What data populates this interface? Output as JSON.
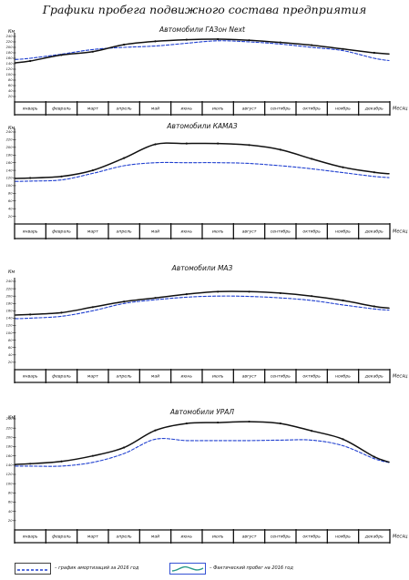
{
  "page": {
    "title": "Графики пробега подвижного состава предприятия"
  },
  "colors": {
    "actual": "#111111",
    "norm": "#1f3fd0",
    "legend_actual": "#2a9a8a"
  },
  "legend": {
    "norm_label": "– график амортизаций за 2016 год",
    "actual_label": "– Фактический пробег на 2016 год"
  },
  "chart_data": [
    {
      "type": "line",
      "title": "Автомобили ГАЗон Next",
      "ylabel": "Км",
      "xlabel": "Месяц",
      "categories": [
        "январь",
        "февраль",
        "март",
        "апрель",
        "май",
        "июнь",
        "июль",
        "август",
        "сентябрь",
        "октябрь",
        "ноябрь",
        "декабрь"
      ],
      "yticks": [
        "240",
        "220",
        "200",
        "180",
        "160",
        "140",
        "120",
        "100",
        "80",
        "60",
        "40",
        "20"
      ],
      "ylim": [
        0,
        240
      ],
      "grid": false,
      "series": [
        {
          "key": "norm",
          "values": [
            160,
            175,
            192,
            200,
            205,
            215,
            224,
            220,
            212,
            200,
            188,
            160
          ]
        },
        {
          "key": "actual",
          "values": [
            150,
            172,
            184,
            210,
            222,
            228,
            230,
            226,
            218,
            208,
            194,
            180
          ]
        }
      ]
    },
    {
      "type": "line",
      "title": "Автомобили КАМАЗ",
      "ylabel": "Км",
      "xlabel": "Месяц",
      "categories": [
        "январь",
        "февраль",
        "март",
        "апрель",
        "май",
        "июнь",
        "июль",
        "август",
        "сентябрь",
        "октябрь",
        "ноябрь",
        "декабрь"
      ],
      "yticks": [
        "240",
        "220",
        "200",
        "180",
        "160",
        "140",
        "120",
        "100",
        "80",
        "60",
        "40",
        "20"
      ],
      "ylim": [
        0,
        240
      ],
      "grid": false,
      "series": [
        {
          "key": "norm",
          "values": [
            112,
            115,
            132,
            152,
            160,
            160,
            160,
            158,
            152,
            144,
            134,
            124
          ]
        },
        {
          "key": "actual",
          "values": [
            120,
            124,
            140,
            172,
            208,
            210,
            210,
            206,
            194,
            170,
            148,
            135
          ]
        }
      ]
    },
    {
      "type": "line",
      "title": "Автомобили МАЗ",
      "ylabel": "Км",
      "xlabel": "Месяц",
      "categories": [
        "январь",
        "февраль",
        "март",
        "апрель",
        "май",
        "июнь",
        "июль",
        "август",
        "сентябрь",
        "октябрь",
        "ноябрь",
        "декабрь"
      ],
      "yticks": [
        "240",
        "220",
        "200",
        "180",
        "160",
        "140",
        "120",
        "100",
        "80",
        "60",
        "40",
        "20"
      ],
      "ylim": [
        0,
        240
      ],
      "grid": false,
      "series": [
        {
          "key": "norm",
          "values": [
            140,
            145,
            160,
            180,
            190,
            197,
            200,
            199,
            195,
            188,
            176,
            165
          ]
        },
        {
          "key": "actual",
          "values": [
            150,
            155,
            170,
            185,
            195,
            205,
            212,
            212,
            208,
            200,
            188,
            172
          ]
        }
      ]
    },
    {
      "type": "line",
      "title": "Автомобили УРАЛ",
      "ylabel": "Км",
      "xlabel": "Месяц",
      "categories": [
        "январь",
        "февраль",
        "март",
        "апрель",
        "май",
        "июнь",
        "июль",
        "август",
        "сентябрь",
        "октябрь",
        "ноябрь",
        "декабрь"
      ],
      "yticks": [
        "240",
        "220",
        "200",
        "180",
        "160",
        "140",
        "120",
        "100",
        "80",
        "60",
        "40",
        "20"
      ],
      "ylim": [
        0,
        240
      ],
      "grid": false,
      "series": [
        {
          "key": "norm",
          "values": [
            138,
            138,
            146,
            165,
            196,
            193,
            193,
            193,
            194,
            194,
            182,
            154
          ]
        },
        {
          "key": "actual",
          "values": [
            143,
            148,
            160,
            178,
            215,
            230,
            232,
            234,
            230,
            214,
            196,
            158
          ]
        }
      ]
    }
  ]
}
